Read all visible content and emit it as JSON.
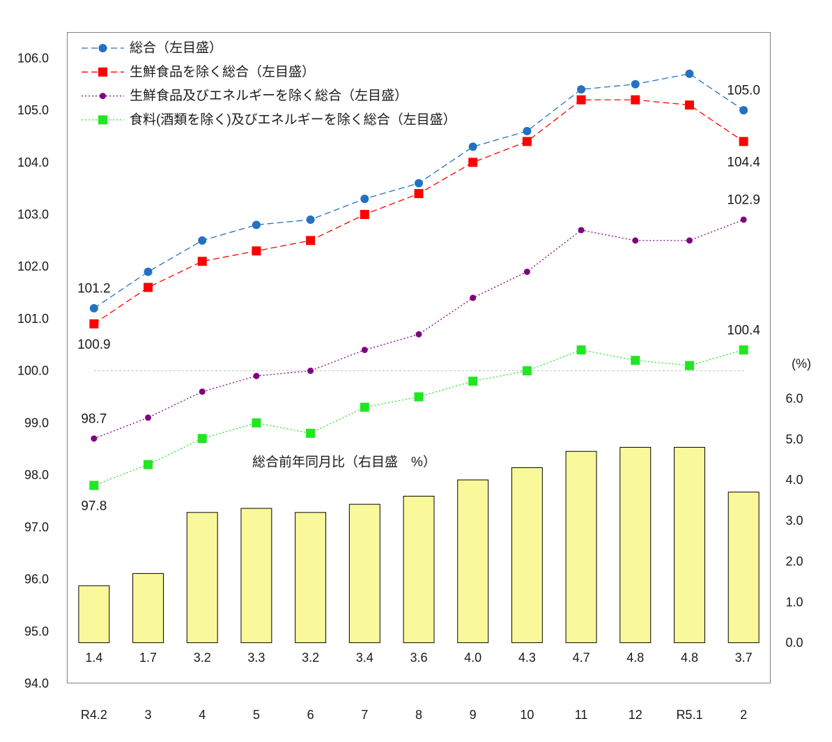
{
  "chart_data": {
    "type": "line",
    "legend_placement": "top-left",
    "grid": false,
    "categories": [
      "R4.2",
      "3",
      "4",
      "5",
      "6",
      "7",
      "8",
      "9",
      "10",
      "11",
      "12",
      "R5.1",
      "2"
    ],
    "y_left": {
      "ticks": [
        "94.0",
        "95.0",
        "96.0",
        "97.0",
        "98.0",
        "99.0",
        "100.0",
        "101.0",
        "102.0",
        "103.0",
        "104.0",
        "105.0",
        "106.0"
      ],
      "ylim": [
        94,
        106.5
      ]
    },
    "y_right": {
      "label": "(%)",
      "ticks": [
        "0.0",
        "1.0",
        "2.0",
        "3.0",
        "4.0",
        "5.0",
        "6.0"
      ],
      "ylim": [
        -1,
        15
      ]
    },
    "reference_line": {
      "axis": "left",
      "y": 100.0,
      "color": "#BFBFBF",
      "style": "dashed"
    },
    "series": [
      {
        "name": "総合（左目盛）",
        "type": "line",
        "axis": "left",
        "color": "#2471C1",
        "line_style": "dashed",
        "marker": "circle",
        "values": [
          101.2,
          101.9,
          102.5,
          102.8,
          102.9,
          103.3,
          103.6,
          104.3,
          104.6,
          105.4,
          105.5,
          105.7,
          105.0
        ],
        "annotations": [
          {
            "category": "R4.2",
            "text": "101.2",
            "position": "above"
          },
          {
            "category": "2",
            "text": "105.0",
            "position": "above"
          }
        ]
      },
      {
        "name": "生鮮食品を除く総合（左目盛）",
        "type": "line",
        "axis": "left",
        "color": "#FF0000",
        "line_style": "dashed",
        "marker": "square",
        "values": [
          100.9,
          101.6,
          102.1,
          102.3,
          102.5,
          103.0,
          103.4,
          104.0,
          104.4,
          105.2,
          105.2,
          105.1,
          104.4
        ],
        "annotations": [
          {
            "category": "R4.2",
            "text": "100.9",
            "position": "below"
          },
          {
            "category": "2",
            "text": "104.4",
            "position": "below"
          }
        ]
      },
      {
        "name": "生鮮食品及びエネルギーを除く総合（左目盛）",
        "type": "line",
        "axis": "left",
        "color": "#800080",
        "line_style": "dotted",
        "marker": "circle",
        "values": [
          98.7,
          99.1,
          99.6,
          99.9,
          100.0,
          100.4,
          100.7,
          101.4,
          101.9,
          102.7,
          102.5,
          102.5,
          102.9
        ],
        "annotations": [
          {
            "category": "R4.2",
            "text": "98.7",
            "position": "above"
          },
          {
            "category": "2",
            "text": "102.9",
            "position": "above"
          }
        ]
      },
      {
        "name": "食料(酒類を除く)及びエネルギーを除く総合（左目盛）",
        "type": "line",
        "axis": "left",
        "color": "#22E622",
        "line_style": "dotted",
        "marker": "square",
        "values": [
          97.8,
          98.2,
          98.7,
          99.0,
          98.8,
          99.3,
          99.5,
          99.8,
          100.0,
          100.4,
          100.2,
          100.1,
          100.4
        ],
        "annotations": [
          {
            "category": "R4.2",
            "text": "97.8",
            "position": "below"
          },
          {
            "category": "2",
            "text": "100.4",
            "position": "above"
          }
        ]
      },
      {
        "name": "総合前年同月比（右目盛　%）",
        "type": "bar",
        "axis": "right",
        "color": "#F9F99C",
        "edge_color": "#000000",
        "values": [
          1.4,
          1.7,
          3.2,
          3.3,
          3.2,
          3.4,
          3.6,
          4.0,
          4.3,
          4.7,
          4.8,
          4.8,
          3.7
        ],
        "value_labels": [
          "1.4",
          "1.7",
          "3.2",
          "3.3",
          "3.2",
          "3.4",
          "3.6",
          "4.0",
          "4.3",
          "4.7",
          "4.8",
          "4.8",
          "3.7"
        ]
      }
    ]
  }
}
